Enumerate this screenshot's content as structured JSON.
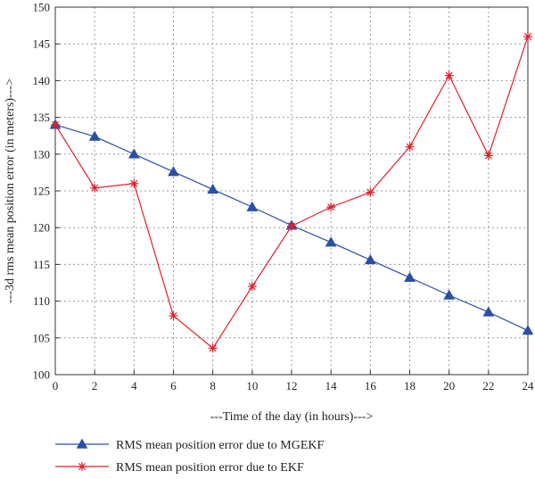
{
  "chart_data": {
    "type": "line",
    "title": "",
    "xlabel": "---Time of the day (in hours)--->",
    "ylabel": "---3d rms mean position error (in meters)--->",
    "xlim": [
      0,
      24
    ],
    "ylim": [
      100,
      150
    ],
    "x_ticks": [
      0,
      2,
      4,
      6,
      8,
      10,
      12,
      14,
      16,
      18,
      20,
      22,
      24
    ],
    "y_ticks": [
      100,
      105,
      110,
      115,
      120,
      125,
      130,
      135,
      140,
      145,
      150
    ],
    "grid": true,
    "legend_position": "bottom",
    "x": [
      0,
      2,
      4,
      6,
      8,
      10,
      12,
      14,
      16,
      18,
      20,
      22,
      24
    ],
    "series": [
      {
        "name": "RMS mean position error due to MGEKF",
        "color": "#2b4fa6",
        "marker": "triangle",
        "values": [
          134.0,
          132.4,
          130.0,
          127.6,
          125.2,
          122.8,
          120.3,
          118.0,
          115.6,
          113.2,
          110.8,
          108.5,
          106.0
        ]
      },
      {
        "name": "RMS mean position error due to EKF",
        "color": "#e0202a",
        "marker": "asterisk",
        "values": [
          134.0,
          125.4,
          126.0,
          108.0,
          103.6,
          112.0,
          120.2,
          122.8,
          124.8,
          131.0,
          140.7,
          129.8,
          146.0
        ]
      }
    ]
  }
}
